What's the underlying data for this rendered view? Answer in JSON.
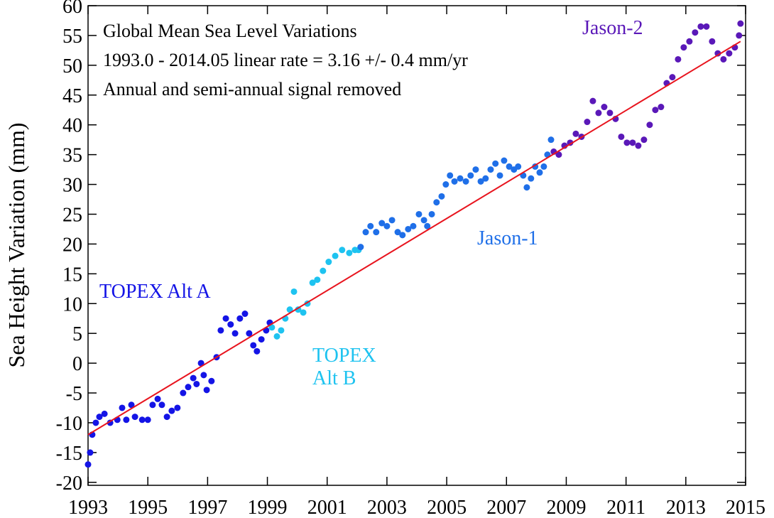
{
  "chart_data": {
    "type": "scatter",
    "annotations": [
      "Global Mean Sea Level Variations",
      "1993.0 - 2014.05 linear rate  = 3.16 +/- 0.4 mm/yr",
      "Annual and semi-annual signal removed"
    ],
    "y_label": "Sea Height Variation (mm)",
    "xlim": [
      1993,
      2015
    ],
    "xticks": [
      1993,
      1995,
      1997,
      1999,
      2001,
      2003,
      2005,
      2007,
      2009,
      2011,
      2013,
      2015
    ],
    "ylim": [
      -20.5,
      60
    ],
    "yticks": [
      -20,
      -15,
      -10,
      -5,
      0,
      5,
      10,
      15,
      20,
      25,
      30,
      35,
      40,
      45,
      50,
      55,
      60
    ],
    "series": [
      {
        "name": "TOPEX Alt A",
        "color": "#1414e6",
        "x": [
          1993.0,
          1993.07,
          1993.14,
          1993.26,
          1993.38,
          1993.55,
          1993.74,
          1993.98,
          1994.14,
          1994.28,
          1994.45,
          1994.57,
          1994.81,
          1995.0,
          1995.16,
          1995.33,
          1995.47,
          1995.64,
          1995.8,
          1995.99,
          1996.18,
          1996.35,
          1996.52,
          1996.63,
          1996.78,
          1996.87,
          1996.97,
          1997.13,
          1997.3,
          1997.44,
          1997.61,
          1997.77,
          1997.92,
          1998.08,
          1998.25,
          1998.39,
          1998.53,
          1998.65,
          1998.8,
          1998.96,
          1999.08
        ],
        "values": [
          -17,
          -15,
          -12,
          -10,
          -9,
          -8.5,
          -10,
          -9.5,
          -7.5,
          -9.5,
          -7,
          -9,
          -9.5,
          -9.5,
          -7,
          -6,
          -7,
          -9,
          -8,
          -7.5,
          -5,
          -4,
          -2.5,
          -3.5,
          0,
          -2,
          -4.5,
          -3,
          1,
          5.5,
          7.5,
          6.5,
          5,
          7.5,
          8.3,
          5,
          3,
          2,
          4,
          5.5,
          6.8
        ]
      },
      {
        "name": "TOPEX Alt B",
        "color": "#1ec3f0",
        "x": [
          1999.15,
          1999.32,
          1999.46,
          1999.6,
          1999.75,
          1999.89,
          2000.03,
          2000.2,
          2000.34,
          2000.51,
          2000.67,
          2000.86,
          2001.05,
          2001.27,
          2001.5,
          2001.74,
          2001.93,
          2002.05
        ],
        "values": [
          6,
          4.5,
          5.5,
          7.5,
          9,
          12,
          9,
          8.5,
          10,
          13.5,
          14,
          15.5,
          17,
          18,
          19,
          18.5,
          19,
          19
        ]
      },
      {
        "name": "Jason-1",
        "color": "#1f6fe8",
        "x": [
          2002.12,
          2002.29,
          2002.45,
          2002.64,
          2002.83,
          2003.0,
          2003.17,
          2003.36,
          2003.52,
          2003.71,
          2003.88,
          2004.07,
          2004.24,
          2004.35,
          2004.5,
          2004.66,
          2004.83,
          2004.97,
          2005.11,
          2005.26,
          2005.45,
          2005.64,
          2005.8,
          2005.97,
          2006.14,
          2006.3,
          2006.47,
          2006.63,
          2006.78,
          2006.92,
          2007.09,
          2007.25,
          2007.39,
          2007.56,
          2007.68,
          2007.82,
          2007.96,
          2008.11,
          2008.25,
          2008.37,
          2008.49
        ],
        "values": [
          19.5,
          22,
          23,
          22,
          23.5,
          23,
          24,
          22,
          21.5,
          22.5,
          23,
          25,
          24,
          23,
          25,
          27,
          28,
          30,
          31.5,
          30.5,
          31,
          30.5,
          31.5,
          32.5,
          30.5,
          31,
          32.5,
          33.5,
          31.5,
          34,
          33,
          32.5,
          33,
          31.5,
          29.5,
          31,
          33,
          32,
          33,
          35,
          37.5
        ]
      },
      {
        "name": "Jason-2",
        "color": "#5a18b8",
        "x": [
          2008.58,
          2008.75,
          2008.94,
          2009.13,
          2009.32,
          2009.51,
          2009.7,
          2009.89,
          2010.08,
          2010.27,
          2010.46,
          2010.65,
          2010.84,
          2011.03,
          2011.22,
          2011.41,
          2011.6,
          2011.79,
          2011.98,
          2012.17,
          2012.36,
          2012.55,
          2012.74,
          2012.93,
          2013.12,
          2013.31,
          2013.5,
          2013.69,
          2013.88,
          2014.07,
          2014.26,
          2014.45,
          2014.64,
          2014.78,
          2014.83
        ],
        "values": [
          35.5,
          35,
          36.5,
          37,
          38.5,
          38,
          40.5,
          44,
          42,
          43,
          42,
          41,
          38,
          37,
          37,
          36.5,
          37.5,
          40,
          42.5,
          43,
          47,
          48,
          51,
          53,
          54,
          55.5,
          56.5,
          56.5,
          54,
          52,
          51,
          52,
          53,
          55,
          57
        ]
      }
    ],
    "trend": {
      "color": "#e8141e",
      "x": [
        1993,
        2014.83
      ],
      "values": [
        -12,
        54
      ]
    }
  }
}
